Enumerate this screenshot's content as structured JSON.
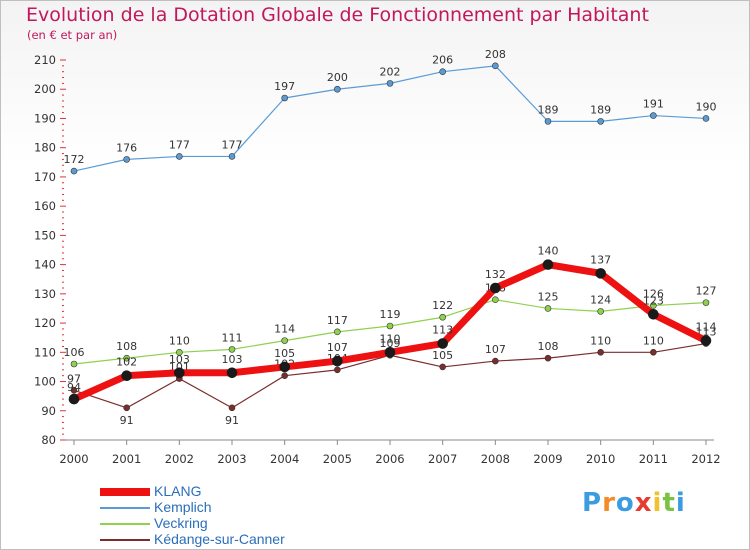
{
  "header": {
    "title": "Evolution de la Dotation Globale de Fonctionnement par Habitant",
    "subtitle": "(en € et par an)"
  },
  "logo": {
    "letters": [
      "P",
      "r",
      "o",
      "x",
      "i",
      "t",
      "i"
    ],
    "colors": [
      "#3b9de0",
      "#f28c28",
      "#3b9de0",
      "#e63b2e",
      "#f2c12e",
      "#7cc242",
      "#3b9de0"
    ]
  },
  "chart_data": {
    "type": "line",
    "title": "Evolution de la Dotation Globale de Fonctionnement par Habitant",
    "subtitle": "(en € et par an)",
    "xlabel": "",
    "ylabel": "",
    "x": [
      "2000",
      "2001",
      "2002",
      "2003",
      "2004",
      "2005",
      "2006",
      "2007",
      "2008",
      "2009",
      "2010",
      "2011",
      "2012"
    ],
    "ylim": [
      80,
      210
    ],
    "yticks": [
      80,
      90,
      100,
      110,
      120,
      130,
      140,
      150,
      160,
      170,
      180,
      190,
      200,
      210
    ],
    "grid": false,
    "legend_position": "bottom-left",
    "series": [
      {
        "name": "Kemplich",
        "color": "#5b9bd5",
        "width": 1.2,
        "values": [
          172,
          176,
          177,
          177,
          197,
          200,
          202,
          206,
          208,
          189,
          189,
          191,
          190
        ]
      },
      {
        "name": "Veckring",
        "color": "#8fd14f",
        "width": 1.2,
        "values": [
          106,
          108,
          110,
          111,
          114,
          117,
          119,
          122,
          128,
          125,
          124,
          126,
          127
        ]
      },
      {
        "name": "Kédange-sur-Canner",
        "color": "#7b2d2d",
        "width": 1.2,
        "values": [
          97,
          91,
          101,
          91,
          102,
          104,
          109,
          105,
          107,
          108,
          110,
          110,
          113
        ]
      },
      {
        "name": "KLANG",
        "color": "#ee1111",
        "width": 7,
        "values": [
          94,
          102,
          103,
          103,
          105,
          107,
          110,
          113,
          132,
          140,
          137,
          123,
          114
        ]
      }
    ],
    "legend_order": [
      "KLANG",
      "Kemplich",
      "Veckring",
      "Kédange-sur-Canner"
    ]
  }
}
